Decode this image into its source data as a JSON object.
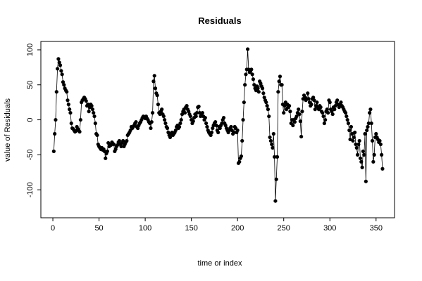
{
  "chart_data": {
    "type": "line",
    "title": "Residuals",
    "x_label": "time or index",
    "y_label": "value of Residuals",
    "color": "#000000",
    "markers": true,
    "x": [
      1,
      2,
      3,
      4,
      5,
      6,
      7,
      8,
      9,
      10,
      11,
      12,
      13,
      14,
      15,
      16,
      17,
      18,
      19,
      20,
      21,
      22,
      23,
      24,
      25,
      26,
      27,
      28,
      29,
      30,
      31,
      32,
      33,
      34,
      35,
      36,
      37,
      38,
      39,
      40,
      41,
      42,
      43,
      44,
      45,
      46,
      47,
      48,
      49,
      50,
      51,
      52,
      53,
      54,
      55,
      56,
      57,
      58,
      59,
      60,
      61,
      62,
      63,
      64,
      65,
      66,
      67,
      68,
      69,
      70,
      71,
      72,
      73,
      74,
      75,
      76,
      77,
      78,
      79,
      80,
      81,
      82,
      83,
      84,
      85,
      86,
      87,
      88,
      89,
      90,
      91,
      92,
      93,
      94,
      95,
      96,
      97,
      98,
      99,
      100,
      101,
      102,
      103,
      104,
      105,
      106,
      107,
      108,
      109,
      110,
      111,
      112,
      113,
      114,
      115,
      116,
      117,
      118,
      119,
      120,
      121,
      122,
      123,
      124,
      125,
      126,
      127,
      128,
      129,
      130,
      131,
      132,
      133,
      134,
      135,
      136,
      137,
      138,
      139,
      140,
      141,
      142,
      143,
      144,
      145,
      146,
      147,
      148,
      149,
      150,
      151,
      152,
      153,
      154,
      155,
      156,
      157,
      158,
      159,
      160,
      161,
      162,
      163,
      164,
      165,
      166,
      167,
      168,
      169,
      170,
      171,
      172,
      173,
      174,
      175,
      176,
      177,
      178,
      179,
      180,
      181,
      182,
      183,
      184,
      185,
      186,
      187,
      188,
      189,
      190,
      191,
      192,
      193,
      194,
      195,
      196,
      197,
      198,
      199,
      200,
      201,
      202,
      203,
      204,
      205,
      206,
      207,
      208,
      209,
      210,
      211,
      212,
      213,
      214,
      215,
      216,
      217,
      218,
      219,
      220,
      221,
      222,
      223,
      224,
      225,
      226,
      227,
      228,
      229,
      230,
      231,
      232,
      233,
      234,
      235,
      236,
      237,
      238,
      239,
      240,
      241,
      242,
      243,
      244,
      245,
      246,
      247,
      248,
      249,
      250,
      251,
      252,
      253,
      254,
      255,
      256,
      257,
      258,
      259,
      260,
      261,
      262,
      263,
      264,
      265,
      266,
      267,
      268,
      269,
      270,
      271,
      272,
      273,
      274,
      275,
      276,
      277,
      278,
      279,
      280,
      281,
      282,
      283,
      284,
      285,
      286,
      287,
      288,
      289,
      290,
      291,
      292,
      293,
      294,
      295,
      296,
      297,
      298,
      299,
      300,
      301,
      302,
      303,
      304,
      305,
      306,
      307,
      308,
      309,
      310,
      311,
      312,
      313,
      314,
      315,
      316,
      317,
      318,
      319,
      320,
      321,
      322,
      323,
      324,
      325,
      326,
      327,
      328,
      329,
      330,
      331,
      332,
      333,
      334,
      335,
      336,
      337,
      338,
      339,
      340,
      341,
      342,
      343,
      344,
      345,
      346,
      347,
      348,
      349,
      350,
      351,
      352,
      353,
      354,
      355,
      356,
      357
    ],
    "values": [
      -45,
      -20,
      0,
      40,
      73,
      87,
      82,
      78,
      70,
      65,
      54,
      50,
      45,
      42,
      40,
      28,
      22,
      15,
      10,
      -5,
      -12,
      -13,
      -15,
      -17,
      -16,
      -10,
      -13,
      -15,
      -17,
      0,
      25,
      28,
      30,
      32,
      30,
      27,
      20,
      22,
      12,
      18,
      22,
      20,
      15,
      10,
      5,
      -5,
      -20,
      -22,
      -35,
      -38,
      -40,
      -42,
      -40,
      -43,
      -42,
      -45,
      -55,
      -48,
      -45,
      -33,
      -38,
      -35,
      -36,
      -32,
      -34,
      -35,
      -45,
      -42,
      -38,
      -36,
      -32,
      -30,
      -35,
      -38,
      -33,
      -30,
      -38,
      -35,
      -32,
      -30,
      -22,
      -20,
      -18,
      -15,
      -10,
      -12,
      -10,
      -8,
      -5,
      -3,
      -10,
      -12,
      -8,
      -5,
      -3,
      0,
      3,
      5,
      3,
      2,
      5,
      2,
      0,
      -3,
      -5,
      -12,
      -3,
      10,
      55,
      63,
      45,
      38,
      35,
      22,
      10,
      8,
      12,
      15,
      8,
      5,
      0,
      -5,
      -10,
      -12,
      -18,
      -22,
      -25,
      -20,
      -18,
      -22,
      -20,
      -18,
      -15,
      -10,
      -8,
      -12,
      -10,
      -5,
      0,
      8,
      12,
      15,
      10,
      18,
      20,
      15,
      12,
      8,
      5,
      0,
      -5,
      -2,
      3,
      8,
      5,
      10,
      18,
      19,
      10,
      5,
      8,
      10,
      5,
      0,
      3,
      -5,
      -10,
      -15,
      -18,
      -20,
      -22,
      -18,
      -12,
      -8,
      -5,
      -3,
      -8,
      -15,
      -18,
      -10,
      -12,
      -8,
      -5,
      0,
      3,
      -5,
      -8,
      -12,
      -15,
      -18,
      -15,
      -12,
      -10,
      -15,
      -20,
      -18,
      -10,
      -12,
      -18,
      -15,
      -62,
      -60,
      -55,
      -52,
      -30,
      0,
      25,
      50,
      65,
      72,
      101,
      72,
      68,
      70,
      72,
      65,
      58,
      50,
      45,
      42,
      48,
      45,
      40,
      55,
      52,
      48,
      45,
      38,
      32,
      28,
      25,
      20,
      15,
      5,
      -25,
      -30,
      -35,
      -40,
      -20,
      -53,
      -116,
      -85,
      -53,
      40,
      55,
      62,
      50,
      50,
      22,
      10,
      20,
      25,
      15,
      22,
      18,
      20,
      12,
      -5,
      0,
      -8,
      0,
      -3,
      2,
      5,
      10,
      15,
      8,
      -2,
      -24,
      12,
      30,
      35,
      32,
      28,
      30,
      38,
      30,
      25,
      20,
      22,
      30,
      32,
      28,
      15,
      20,
      25,
      18,
      15,
      20,
      18,
      12,
      10,
      5,
      -5,
      0,
      12,
      15,
      10,
      28,
      25,
      15,
      12,
      8,
      18,
      15,
      20,
      25,
      28,
      22,
      18,
      22,
      25,
      20,
      18,
      15,
      12,
      10,
      5,
      0,
      -5,
      -15,
      -28,
      -10,
      -20,
      -30,
      -25,
      -18,
      -35,
      -40,
      -50,
      -35,
      -30,
      -55,
      -60,
      -68,
      -45,
      -50,
      -20,
      -88,
      -15,
      -10,
      -5,
      10,
      15,
      -5,
      -30,
      -60,
      -50,
      -25,
      -20,
      -25,
      -28,
      -32,
      -30,
      -35,
      -50,
      -70
    ],
    "xlim": [
      -13,
      370
    ],
    "xticks": [
      0,
      50,
      100,
      150,
      200,
      250,
      300,
      350
    ],
    "ylim": [
      -140,
      112
    ],
    "yticks": [
      -100,
      -50,
      0,
      50,
      100
    ]
  }
}
